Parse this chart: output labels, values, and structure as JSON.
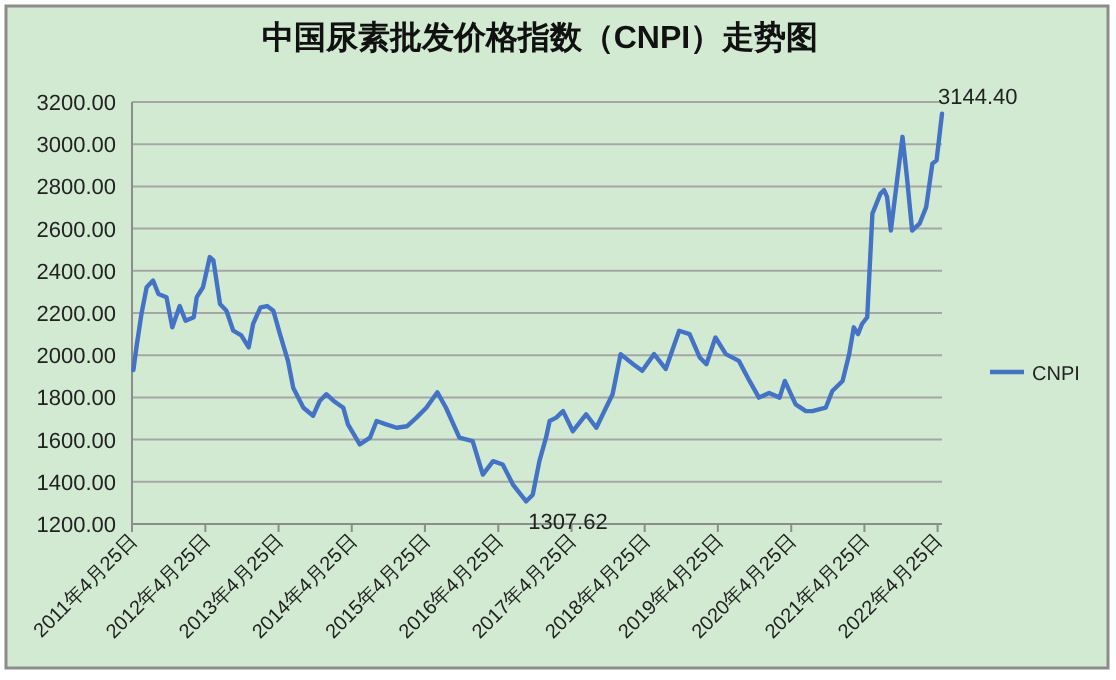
{
  "chart_data": {
    "type": "line",
    "title": "中国尿素批发价格指数（CNPI）走势图",
    "x": [
      "2011-05-02",
      "2011-05-17",
      "2011-06-11",
      "2011-07-07",
      "2011-08-08",
      "2011-09-04",
      "2011-10-14",
      "2011-11-12",
      "2011-12-19",
      "2012-01-17",
      "2012-02-27",
      "2012-03-13",
      "2012-04-13",
      "2012-05-17",
      "2012-06-04",
      "2012-07-07",
      "2012-08-08",
      "2012-09-11",
      "2012-10-21",
      "2012-11-27",
      "2012-12-19",
      "2013-01-25",
      "2013-02-27",
      "2013-03-30",
      "2013-05-02",
      "2013-06-11",
      "2013-07-07",
      "2013-08-27",
      "2013-10-14",
      "2013-11-16",
      "2013-12-19",
      "2014-01-25",
      "2014-03-14",
      "2014-04-06",
      "2014-06-04",
      "2014-07-25",
      "2014-08-27",
      "2014-10-14",
      "2014-12-05",
      "2015-01-25",
      "2015-03-14",
      "2015-05-02",
      "2015-06-26",
      "2015-08-08",
      "2015-10-14",
      "2015-12-19",
      "2016-02-08",
      "2016-03-30",
      "2016-05-17",
      "2016-07-07",
      "2016-09-11",
      "2016-10-14",
      "2016-11-16",
      "2016-12-19",
      "2017-01-06",
      "2017-02-08",
      "2017-03-14",
      "2017-05-02",
      "2017-07-07",
      "2017-08-27",
      "2017-10-14",
      "2017-11-16",
      "2017-12-26",
      "2018-02-27",
      "2018-04-13",
      "2018-06-11",
      "2018-08-08",
      "2018-10-14",
      "2018-12-05",
      "2019-01-25",
      "2019-02-27",
      "2019-04-13",
      "2019-06-04",
      "2019-08-08",
      "2019-09-30",
      "2019-11-16",
      "2020-01-06",
      "2020-02-27",
      "2020-03-24",
      "2020-05-17",
      "2020-07-07",
      "2020-08-08",
      "2020-10-14",
      "2020-11-16",
      "2021-01-06",
      "2021-02-08",
      "2021-03-03",
      "2021-03-24",
      "2021-04-13",
      "2021-05-09",
      "2021-06-04",
      "2021-07-14",
      "2021-08-01",
      "2021-08-16",
      "2021-09-04",
      "2021-10-07",
      "2021-11-01",
      "2021-11-23",
      "2021-12-19",
      "2022-01-25",
      "2022-02-27",
      "2022-03-30",
      "2022-04-20",
      "2022-05-17"
    ],
    "series": [
      {
        "name": "CNPI",
        "color": "#4472c4",
        "values": [
          1930,
          2037,
          2195,
          2322,
          2354,
          2290,
          2275,
          2132,
          2233,
          2163,
          2180,
          2275,
          2322,
          2465,
          2449,
          2243,
          2211,
          2116,
          2094,
          2037,
          2148,
          2227,
          2233,
          2211,
          2100,
          1973,
          1846,
          1751,
          1713,
          1783,
          1815,
          1783,
          1751,
          1672,
          1577,
          1609,
          1688,
          1672,
          1656,
          1663,
          1704,
          1751,
          1824,
          1751,
          1609,
          1593,
          1434,
          1498,
          1482,
          1387,
          1307.62,
          1339,
          1498,
          1609,
          1688,
          1704,
          1735,
          1640,
          1720,
          1656,
          1751,
          1815,
          2005,
          1957,
          1926,
          2005,
          1935,
          2116,
          2100,
          1989,
          1957,
          2084,
          2005,
          1973,
          1878,
          1799,
          1821,
          1799,
          1878,
          1767,
          1735,
          1735,
          1751,
          1830,
          1878,
          2005,
          2132,
          2100,
          2148,
          2180,
          2671,
          2766,
          2782,
          2750,
          2591,
          2845,
          3035,
          2845,
          2591,
          2623,
          2702,
          2908,
          2924,
          3144.4
        ]
      }
    ],
    "xlim": [
      "2011-04-25",
      "2022-05-17"
    ],
    "xticks": [
      {
        "value": "2011-04-25",
        "label": "2011年4月25日"
      },
      {
        "value": "2012-04-25",
        "label": "2012年4月25日"
      },
      {
        "value": "2013-04-25",
        "label": "2013年4月25日"
      },
      {
        "value": "2014-04-25",
        "label": "2014年4月25日"
      },
      {
        "value": "2015-04-25",
        "label": "2015年4月25日"
      },
      {
        "value": "2016-04-25",
        "label": "2016年4月25日"
      },
      {
        "value": "2017-04-25",
        "label": "2017年4月25日"
      },
      {
        "value": "2018-04-25",
        "label": "2018年4月25日"
      },
      {
        "value": "2019-04-25",
        "label": "2019年4月25日"
      },
      {
        "value": "2020-04-25",
        "label": "2020年4月25日"
      },
      {
        "value": "2021-04-25",
        "label": "2021年4月25日"
      },
      {
        "value": "2022-04-25",
        "label": "2022年4月25日"
      }
    ],
    "ylim": [
      1200,
      3200
    ],
    "yticks": [
      {
        "value": 1200,
        "label": "1200.00"
      },
      {
        "value": 1400,
        "label": "1400.00"
      },
      {
        "value": 1600,
        "label": "1600.00"
      },
      {
        "value": 1800,
        "label": "1800.00"
      },
      {
        "value": 2000,
        "label": "2000.00"
      },
      {
        "value": 2200,
        "label": "2200.00"
      },
      {
        "value": 2400,
        "label": "2400.00"
      },
      {
        "value": 2600,
        "label": "2600.00"
      },
      {
        "value": 2800,
        "label": "2800.00"
      },
      {
        "value": 3000,
        "label": "3000.00"
      },
      {
        "value": 3200,
        "label": "3200.00"
      }
    ],
    "annotations": [
      {
        "text": "1307.62",
        "x": "2016-09-11",
        "y": 1307.62
      },
      {
        "text": "3144.40",
        "x": "2022-05-17",
        "y": 3144.4
      }
    ],
    "grid": "y",
    "legend": "right",
    "marker": "none",
    "line_style": "solid"
  }
}
